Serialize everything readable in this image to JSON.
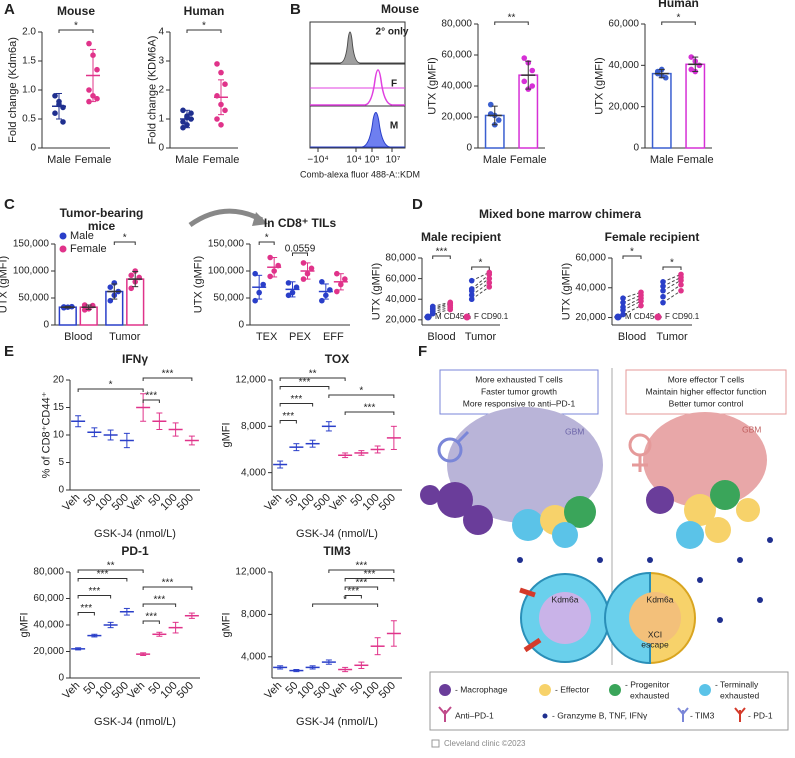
{
  "panels": [
    "A",
    "B",
    "C",
    "D",
    "E",
    "F"
  ],
  "suptitle_d": "Mixed bone marrow chimera",
  "flow": {
    "title": "Mouse",
    "labels": [
      "2° only",
      "F",
      "M"
    ],
    "xticks": [
      "−10⁴",
      "10⁴",
      "10⁵",
      "10⁷"
    ],
    "xlabel": "Comb-alexa fluor 488-A::KDM"
  },
  "chart_data": [
    {
      "type": "dot",
      "title": "Mouse",
      "ylabel": "Fold change (Kdm6a)",
      "categories": [
        "Male",
        "Female"
      ],
      "colors": [
        "#1f2f8f",
        "#e0338a"
      ],
      "values": [
        0.72,
        1.25
      ],
      "errors": [
        0.22,
        0.45
      ],
      "points": [
        [
          0.9,
          0.75,
          0.7,
          0.6,
          0.8,
          0.45
        ],
        [
          1.8,
          1.6,
          1.35,
          1.0,
          0.9,
          0.85,
          0.8
        ]
      ],
      "ylim": [
        0,
        2
      ],
      "yticks": [
        0,
        0.5,
        {
          "value": 1,
          "label": "1.0"
        },
        1.5,
        {
          "value": 2,
          "label": "2.0"
        }
      ],
      "brackets": [
        {
          "text": "*",
          "from": 0,
          "to": 1
        }
      ]
    },
    {
      "type": "dot",
      "title": "Human",
      "ylabel": "Fold change (KDM6A)",
      "categories": [
        "Male",
        "Female"
      ],
      "colors": [
        "#1f2f8f",
        "#e0338a"
      ],
      "values": [
        1.0,
        1.75
      ],
      "errors": [
        0.3,
        0.6
      ],
      "points": [
        [
          1.3,
          1.1,
          1.0,
          0.9,
          0.8,
          1.2,
          0.7,
          1.05
        ],
        [
          2.9,
          2.6,
          2.2,
          1.8,
          1.5,
          1.3,
          1.0,
          0.8
        ]
      ],
      "ylim": [
        0,
        4
      ],
      "yticks": [
        0,
        1,
        2,
        3,
        4
      ],
      "brackets": [
        {
          "text": "*",
          "from": 0,
          "to": 1
        }
      ]
    },
    {
      "type": "bar",
      "ylabel": "UTX (gMFI)",
      "categories": [
        "Male",
        "Female"
      ],
      "colors": [
        "#3a5fd0",
        "#d630d6"
      ],
      "values": [
        21000,
        47000
      ],
      "errors": [
        6000,
        9000
      ],
      "points": [
        [
          22000,
          15000,
          18000,
          28000,
          21000
        ],
        [
          58000,
          55000,
          50000,
          43000,
          38000,
          40000
        ]
      ],
      "ylim": [
        0,
        80000
      ],
      "yticks": [
        0,
        {
          "value": 20000,
          "label": "20,000"
        },
        {
          "value": 40000,
          "label": "40,000"
        },
        {
          "value": 60000,
          "label": "60,000"
        },
        {
          "value": 80000,
          "label": "80,000"
        }
      ],
      "brackets": [
        {
          "text": "**",
          "from": 0,
          "to": 1
        }
      ]
    },
    {
      "type": "bar",
      "title": "Human",
      "ylabel": "UTX (gMFI)",
      "categories": [
        "Male",
        "Female"
      ],
      "colors": [
        "#3a5fd0",
        "#d630d6"
      ],
      "values": [
        36000,
        40500
      ],
      "errors": [
        2000,
        3500
      ],
      "points": [
        [
          37000,
          35000,
          34000,
          36000,
          38000
        ],
        [
          44000,
          42000,
          40000,
          38000,
          37000
        ]
      ],
      "ylim": [
        0,
        60000
      ],
      "yticks": [
        0,
        {
          "value": 20000,
          "label": "20,000"
        },
        {
          "value": 40000,
          "label": "40,000"
        },
        {
          "value": 60000,
          "label": "60,000"
        }
      ],
      "brackets": [
        {
          "text": "*",
          "from": 0,
          "to": 1
        }
      ]
    },
    {
      "type": "bar",
      "title_lines": [
        "Tumor-bearing",
        "mice"
      ],
      "ylabel": "UTX (gMFI)",
      "categories": [
        "Blood",
        "Tumor"
      ],
      "legend": "upper left",
      "series": [
        {
          "name": "Male",
          "color": "#2a3fc9",
          "values": [
            33000,
            62000
          ],
          "errors": [
            1500,
            14000
          ],
          "points": [
            [
              32000,
              33000,
              34000,
              33500
            ],
            [
              45000,
              55000,
              62000,
              70000,
              78000
            ]
          ]
        },
        {
          "name": "Female",
          "color": "#e0338a",
          "values": [
            33000,
            85000
          ],
          "errors": [
            4000,
            14000
          ],
          "points": [
            [
              28000,
              30000,
              36000,
              37000
            ],
            [
              68000,
              80000,
              88000,
              92000,
              100000
            ]
          ]
        }
      ],
      "ylim": [
        0,
        150000
      ],
      "yticks": [
        0,
        {
          "value": 50000,
          "label": "50,000"
        },
        {
          "value": 100000,
          "label": "100,000"
        },
        {
          "value": 150000,
          "label": "150,000"
        }
      ],
      "brackets": [
        {
          "text": "*",
          "category": 1
        }
      ]
    },
    {
      "type": "dot",
      "title": "In CD8⁺ TILs",
      "ylabel": "UTX (gMFI)",
      "categories": [
        "TEX",
        "PEX",
        "EFF"
      ],
      "series": [
        {
          "color": "#2a3fc9",
          "values": [
            70000,
            66000,
            62000
          ],
          "errors": [
            22000,
            14000,
            14000
          ],
          "points": [
            [
              45000,
              60000,
              75000,
              95000
            ],
            [
              55000,
              60000,
              70000,
              78000
            ],
            [
              45000,
              55000,
              65000,
              80000
            ]
          ]
        },
        {
          "color": "#e0338a",
          "values": [
            107000,
            100000,
            80000
          ],
          "errors": [
            18000,
            15000,
            15000
          ],
          "points": [
            [
              90000,
              100000,
              110000,
              125000
            ],
            [
              85000,
              95000,
              105000,
              115000
            ],
            [
              62000,
              75000,
              85000,
              95000
            ]
          ]
        }
      ],
      "ylim": [
        0,
        150000
      ],
      "yticks": [
        0,
        {
          "value": 50000,
          "label": "50,000"
        },
        {
          "value": 100000,
          "label": "100,000"
        },
        {
          "value": 150000,
          "label": "150,000"
        }
      ],
      "brackets": [
        {
          "text": "*",
          "category": 0
        },
        {
          "text": "0.0559",
          "category": 1
        }
      ]
    },
    {
      "type": "paired",
      "title": "Male recipient",
      "ylabel": "UTX (gMFI)",
      "categories": [
        "Blood",
        "Tumor"
      ],
      "legend": "lower center",
      "series": [
        {
          "name": "M CD45.1",
          "color": "#2a3fc9",
          "values": [
            [
              26000,
              28000,
              30000,
              31000,
              33000
            ],
            [
              40000,
              44000,
              48000,
              50000,
              58000
            ]
          ]
        },
        {
          "name": "F CD90.1",
          "color": "#e0338a",
          "values": [
            [
              30000,
              32000,
              34000,
              36000,
              37000
            ],
            [
              52000,
              56000,
              60000,
              64000,
              66000
            ]
          ]
        }
      ],
      "ylim": [
        15000,
        80000
      ],
      "yticks": [
        {
          "value": 20000,
          "label": "20,000"
        },
        {
          "value": 40000,
          "label": "40,000"
        },
        {
          "value": 60000,
          "label": "60,000"
        },
        {
          "value": 80000,
          "label": "80,000"
        }
      ],
      "brackets": [
        {
          "text": "***",
          "category": 0
        },
        {
          "text": "*",
          "category": 1
        }
      ]
    },
    {
      "type": "paired",
      "title": "Female recipient",
      "ylabel": "UTX (gMFI)",
      "categories": [
        "Blood",
        "Tumor"
      ],
      "legend": "lower center",
      "series": [
        {
          "name": "M CD45.1",
          "color": "#2a3fc9",
          "values": [
            [
              22000,
              25000,
              27000,
              30000,
              33000
            ],
            [
              30000,
              34000,
              38000,
              41000,
              44000
            ]
          ]
        },
        {
          "name": "F CD90.1",
          "color": "#e0338a",
          "values": [
            [
              28000,
              31000,
              33000,
              35000,
              37000
            ],
            [
              38000,
              42000,
              45000,
              47000,
              49000
            ]
          ]
        }
      ],
      "ylim": [
        15000,
        60000
      ],
      "yticks": [
        {
          "value": 20000,
          "label": "20,000"
        },
        {
          "value": 40000,
          "label": "40,000"
        },
        {
          "value": 60000,
          "label": "60,000"
        }
      ],
      "brackets": [
        {
          "text": "*",
          "category": 0
        },
        {
          "text": "*",
          "category": 1
        }
      ]
    },
    {
      "type": "dot",
      "title": "IFNγ",
      "ylabel": "% of CD8⁺CD44⁺",
      "xlabel": "GSK-J4 (nmol/L)",
      "xtick_rotation": 45,
      "categories": [
        "Veh",
        "50",
        "100",
        "500",
        "Veh",
        "50",
        "100",
        "500"
      ],
      "colors": [
        "#2a3fc9",
        "#2a3fc9",
        "#2a3fc9",
        "#2a3fc9",
        "#e0338a",
        "#e0338a",
        "#e0338a",
        "#e0338a"
      ],
      "values": [
        12.5,
        10.5,
        10,
        9,
        15,
        12.5,
        11,
        9
      ],
      "errors": [
        1,
        0.8,
        0.9,
        1.3,
        2.5,
        1.5,
        1.2,
        0.8
      ],
      "ylim": [
        0,
        20
      ],
      "yticks": [
        0,
        5,
        10,
        15,
        20
      ],
      "brackets": [
        {
          "text": "***",
          "from": 4,
          "to": 7
        },
        {
          "text": "*",
          "from": 0,
          "to": 4
        },
        {
          "text": "***",
          "from": 4,
          "to": 5
        }
      ]
    },
    {
      "type": "dot",
      "title": "TOX",
      "ylabel": "gMFI",
      "xlabel": "GSK-J4 (nmol/L)",
      "xtick_rotation": 45,
      "categories": [
        "Veh",
        "50",
        "100",
        "500",
        "Veh",
        "50",
        "100",
        "500"
      ],
      "colors": [
        "#2a3fc9",
        "#2a3fc9",
        "#2a3fc9",
        "#2a3fc9",
        "#e0338a",
        "#e0338a",
        "#e0338a",
        "#e0338a"
      ],
      "values": [
        4700,
        6200,
        6500,
        8000,
        5500,
        5700,
        6000,
        7000
      ],
      "errors": [
        300,
        300,
        300,
        400,
        200,
        200,
        300,
        1000
      ],
      "ylim": [
        2500,
        12000
      ],
      "yticks": [
        {
          "value": 4000,
          "label": "4,000"
        },
        {
          "value": 8000,
          "label": "8,000"
        },
        {
          "value": 12000,
          "label": "12,000"
        }
      ],
      "brackets": [
        {
          "text": "**",
          "from": 0,
          "to": 4
        },
        {
          "text": "***",
          "from": 0,
          "to": 3
        },
        {
          "text": "*",
          "from": 3,
          "to": 7
        },
        {
          "text": "***",
          "from": 0,
          "to": 2
        },
        {
          "text": "***",
          "from": 4,
          "to": 7
        },
        {
          "text": "***",
          "from": 0,
          "to": 1
        }
      ]
    },
    {
      "type": "dot",
      "title": "PD-1",
      "ylabel": "gMFI",
      "xlabel": "GSK-J4 (nmol/L)",
      "xtick_rotation": 45,
      "categories": [
        "Veh",
        "50",
        "100",
        "500",
        "Veh",
        "50",
        "100",
        "500"
      ],
      "colors": [
        "#2a3fc9",
        "#2a3fc9",
        "#2a3fc9",
        "#2a3fc9",
        "#e0338a",
        "#e0338a",
        "#e0338a",
        "#e0338a"
      ],
      "values": [
        22000,
        32000,
        40000,
        50000,
        18000,
        33000,
        38000,
        47000
      ],
      "errors": [
        800,
        1000,
        2000,
        2500,
        1000,
        1500,
        4000,
        2000
      ],
      "ylim": [
        0,
        80000
      ],
      "yticks": [
        0,
        {
          "value": 20000,
          "label": "20,000"
        },
        {
          "value": 40000,
          "label": "40,000"
        },
        {
          "value": 60000,
          "label": "60,000"
        },
        {
          "value": 80000,
          "label": "80,000"
        }
      ],
      "brackets": [
        {
          "text": "**",
          "from": 0,
          "to": 4
        },
        {
          "text": "***",
          "from": 0,
          "to": 3
        },
        {
          "text": "***",
          "from": 4,
          "to": 7
        },
        {
          "text": "***",
          "from": 0,
          "to": 2
        },
        {
          "text": "***",
          "from": 4,
          "to": 6
        },
        {
          "text": "***",
          "from": 0,
          "to": 1
        },
        {
          "text": "***",
          "from": 4,
          "to": 5
        }
      ]
    },
    {
      "type": "dot",
      "title": "TIM3",
      "ylabel": "gMFI",
      "xlabel": "GSK-J4 (nmol/L)",
      "xtick_rotation": 45,
      "categories": [
        "Veh",
        "50",
        "100",
        "500",
        "Veh",
        "50",
        "100",
        "500"
      ],
      "colors": [
        "#2a3fc9",
        "#2a3fc9",
        "#2a3fc9",
        "#2a3fc9",
        "#e0338a",
        "#e0338a",
        "#e0338a",
        "#e0338a"
      ],
      "values": [
        3000,
        2700,
        3000,
        3500,
        2800,
        3200,
        5000,
        6200
      ],
      "errors": [
        150,
        100,
        150,
        200,
        200,
        300,
        800,
        1200
      ],
      "ylim": [
        2000,
        12000
      ],
      "yticks": [
        {
          "value": 4000,
          "label": "4,000"
        },
        {
          "value": 8000,
          "label": "8,000"
        },
        {
          "value": 12000,
          "label": "12,000"
        }
      ],
      "brackets": [
        {
          "text": "***",
          "from": 3,
          "to": 7
        },
        {
          "text": "***",
          "from": 4,
          "to": 7
        },
        {
          "text": "***",
          "from": 4,
          "to": 6
        },
        {
          "text": "***",
          "from": 4,
          "to": 5
        },
        {
          "text": "*",
          "from": 2,
          "to": 6
        }
      ]
    }
  ],
  "diagram": {
    "left_box": [
      "More exhausted T cells",
      "Faster tumor growth",
      "More responsive to anti–PD-1"
    ],
    "right_box": [
      "More effector T cells",
      "Maintain higher effector function",
      "Better tumor control"
    ],
    "gbm": [
      "GBM",
      "GBM"
    ],
    "kdm6a": [
      "Kdm6a",
      "Kdm6a"
    ],
    "xci": [
      "XCI",
      "escape"
    ],
    "legend": [
      [
        "- Macrophage"
      ],
      [
        "- Effector"
      ],
      [
        "- Progenitor",
        "exhausted"
      ],
      [
        "- Terminally",
        "exhausted"
      ],
      [
        "Anti–PD-1"
      ],
      [
        "- Granzyme B, TNF, IFNγ"
      ],
      [
        "- TIM3"
      ],
      [
        "- PD-1"
      ]
    ],
    "footer": "Cleveland clinic ©2023"
  }
}
